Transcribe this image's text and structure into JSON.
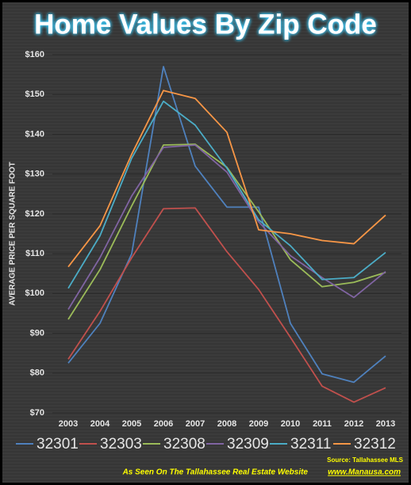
{
  "chart_data": {
    "type": "line",
    "title": "Home Values By Zip Code",
    "y_label": "AVERAGE PRICE PER SQUARE FOOT",
    "categories": [
      "2003",
      "2004",
      "2005",
      "2006",
      "2007",
      "2008",
      "2009",
      "2010",
      "2011",
      "2012",
      "2013"
    ],
    "series": [
      {
        "name": "32301",
        "color": "#4f81bd",
        "values": [
          82.5,
          92.5,
          110,
          157,
          132,
          121.7,
          121.7,
          92.5,
          79.8,
          77.7,
          84.3
        ]
      },
      {
        "name": "32303",
        "color": "#c0504d",
        "values": [
          83.5,
          95.5,
          109,
          121.3,
          121.5,
          110.5,
          101,
          89,
          76.7,
          72.7,
          76.3
        ]
      },
      {
        "name": "32308",
        "color": "#9bbb59",
        "values": [
          93.5,
          106,
          122,
          137.3,
          137.5,
          131.7,
          120.5,
          108.5,
          101.7,
          102.8,
          105.3
        ]
      },
      {
        "name": "32309",
        "color": "#8064a2",
        "values": [
          96,
          109,
          124.5,
          136.7,
          137.3,
          130.5,
          118,
          109.5,
          104,
          99,
          105.5
        ]
      },
      {
        "name": "32311",
        "color": "#4bacc6",
        "values": [
          101.3,
          114.5,
          134,
          148.3,
          142.3,
          131.5,
          118.5,
          112,
          103.5,
          104,
          110.3
        ]
      },
      {
        "name": "32312",
        "color": "#f79646",
        "values": [
          106.7,
          117,
          135,
          151,
          149,
          140.5,
          116,
          115,
          113.3,
          112.5,
          119.7
        ]
      }
    ],
    "ylim": [
      70,
      160
    ],
    "yticks": [
      {
        "value": 70,
        "label": "$70"
      },
      {
        "value": 80,
        "label": "$80"
      },
      {
        "value": 90,
        "label": "$90"
      },
      {
        "value": 100,
        "label": "$100"
      },
      {
        "value": 110,
        "label": "$110"
      },
      {
        "value": 120,
        "label": "$120"
      },
      {
        "value": 130,
        "label": "$130"
      },
      {
        "value": 140,
        "label": "$140"
      },
      {
        "value": 150,
        "label": "$150"
      },
      {
        "value": 160,
        "label": "$160"
      }
    ],
    "grid": true,
    "source": "Source: Tallahassee MLS",
    "footer": "As Seen On The Tallahassee Real Estate Website",
    "website": "www.Manausa.com"
  }
}
